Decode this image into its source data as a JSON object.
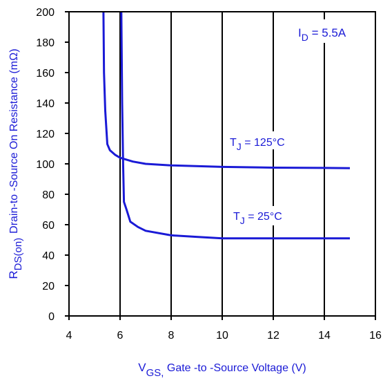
{
  "chart_data": {
    "type": "line",
    "title": "",
    "xlabel": {
      "main": "V",
      "sub": "GS,",
      "rest": " Gate -to -Source Voltage  (V)"
    },
    "ylabel": {
      "main": "R",
      "sub": "DS(on)",
      "rest": "Drain-to -Source On Resistance (mΩ)"
    },
    "xlim": [
      4,
      16
    ],
    "ylim": [
      0,
      200
    ],
    "xticks": [
      "4",
      "6",
      "8",
      "10",
      "12",
      "14",
      "16"
    ],
    "yticks": [
      "0",
      "20",
      "40",
      "60",
      "80",
      "100",
      "120",
      "140",
      "160",
      "180",
      "200"
    ],
    "grid": "vertical",
    "colors": {
      "series": "#1a1ad6",
      "axes": "#000000"
    },
    "annotations": {
      "condition": {
        "main": "I",
        "sub": "D",
        "rest": " = 5.5A"
      },
      "t125": {
        "main": "T",
        "sub": "J",
        "rest": " = 125°C"
      },
      "t25": {
        "main": "T",
        "sub": "J",
        "rest": " = 25°C"
      }
    },
    "series": [
      {
        "name": "TJ = 125°C",
        "x": [
          5.35,
          5.37,
          5.42,
          5.5,
          5.6,
          5.8,
          6.0,
          6.5,
          7.0,
          8.0,
          10.0,
          12.0,
          14.0,
          15.0
        ],
        "y": [
          200,
          160,
          135,
          113,
          109,
          106,
          104,
          101.5,
          100,
          99,
          98,
          97.5,
          97.3,
          97.2
        ]
      },
      {
        "name": "TJ = 25°C",
        "x": [
          6.05,
          6.08,
          6.12,
          6.15,
          6.25,
          6.4,
          6.7,
          7.0,
          8.0,
          9.0,
          10.0,
          12.0,
          14.0,
          15.0
        ],
        "y": [
          200,
          140,
          100,
          75,
          70,
          62,
          58.5,
          56,
          53,
          52,
          51,
          51,
          51,
          51
        ]
      }
    ]
  }
}
